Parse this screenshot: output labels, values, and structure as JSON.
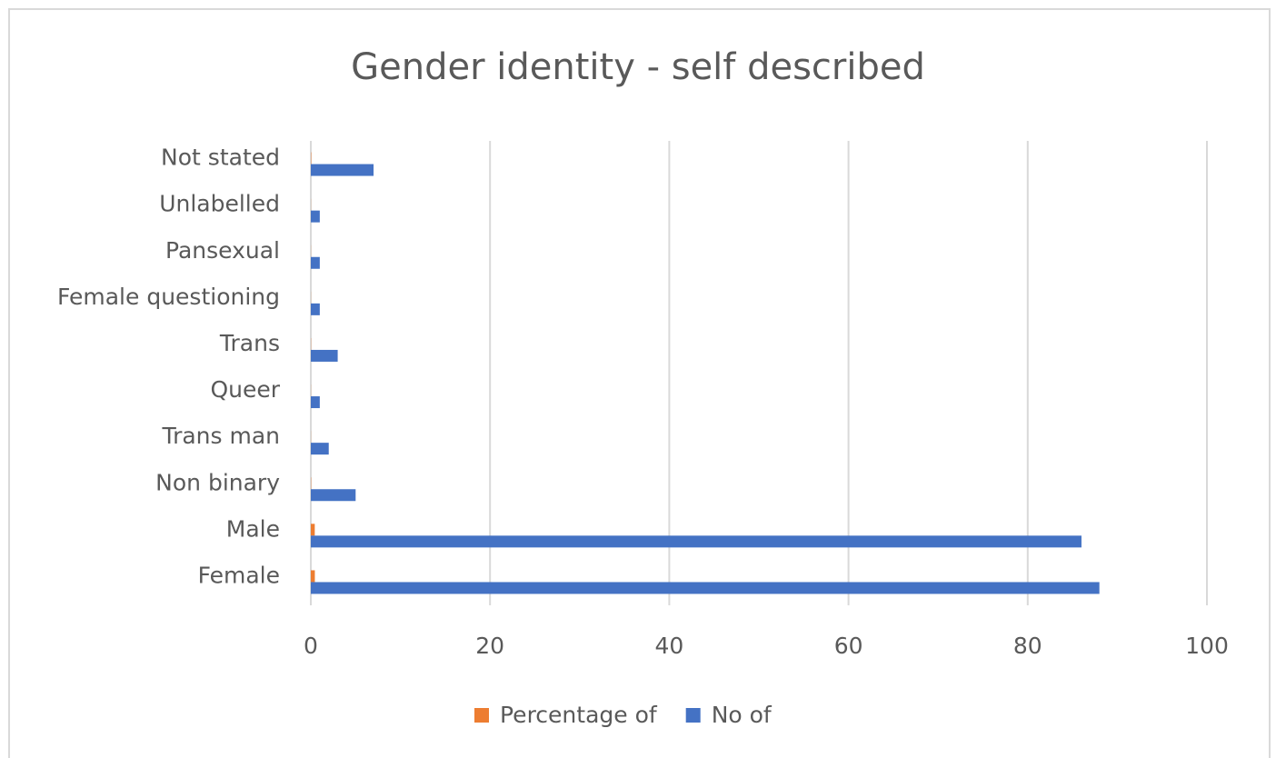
{
  "chart_data": {
    "type": "bar",
    "orientation": "horizontal",
    "title": "Gender identity - self described",
    "categories": [
      "Female",
      "Male",
      "Non binary",
      "Trans man",
      "Queer",
      "Trans",
      "Female questioning",
      "Pansexual",
      "Unlabelled",
      "Not stated"
    ],
    "series": [
      {
        "name": "Percentage of",
        "color": "#ed7d31",
        "values": [
          0.45,
          0.44,
          0.03,
          0.01,
          0.01,
          0.02,
          0.01,
          0.01,
          0.01,
          0.04
        ]
      },
      {
        "name": "No of",
        "color": "#4472c4",
        "values": [
          88,
          86,
          5,
          2,
          1,
          3,
          1,
          1,
          1,
          7
        ]
      }
    ],
    "xlim": [
      0,
      100
    ],
    "xticks": [
      0,
      20,
      40,
      60,
      80,
      100
    ],
    "grid": true,
    "legend": "bottom"
  }
}
